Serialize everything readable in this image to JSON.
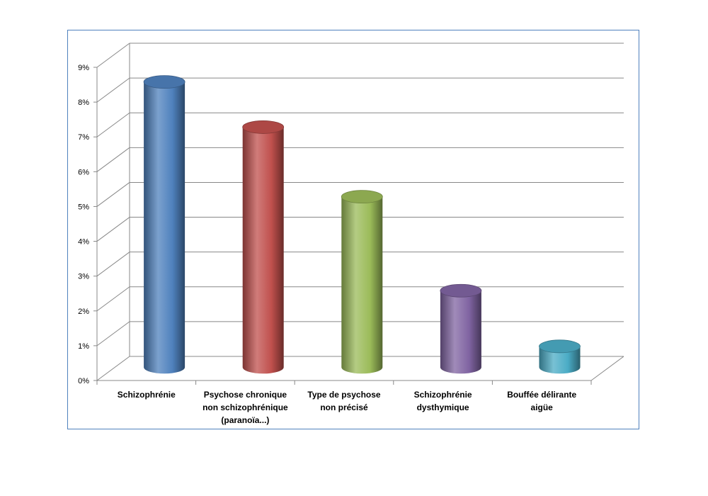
{
  "chart_data": {
    "type": "bar",
    "title": "",
    "xlabel": "",
    "ylabel": "",
    "categories": [
      [
        "Schizophrénie"
      ],
      [
        "Psychose chronique",
        "non schizophrénique",
        "(paranoïa...)"
      ],
      [
        "Type de psychose",
        "non précisé"
      ],
      [
        "Schizophrénie",
        "dysthymique"
      ],
      [
        "Bouffée délirante",
        "aigüe"
      ]
    ],
    "values": [
      8.2,
      6.9,
      4.9,
      2.2,
      0.6
    ],
    "value_unit": "%",
    "ylim": [
      0,
      9
    ],
    "yticks": [
      "0%",
      "1%",
      "2%",
      "3%",
      "4%",
      "5%",
      "6%",
      "7%",
      "8%",
      "9%"
    ],
    "grid": true,
    "legend": "none",
    "three_d": true,
    "bar_shape": "cylinder",
    "colors": [
      "#4f81bd",
      "#c0504d",
      "#9bbb59",
      "#8064a2",
      "#4bacc6"
    ],
    "frame_color": "#4f81bd"
  }
}
